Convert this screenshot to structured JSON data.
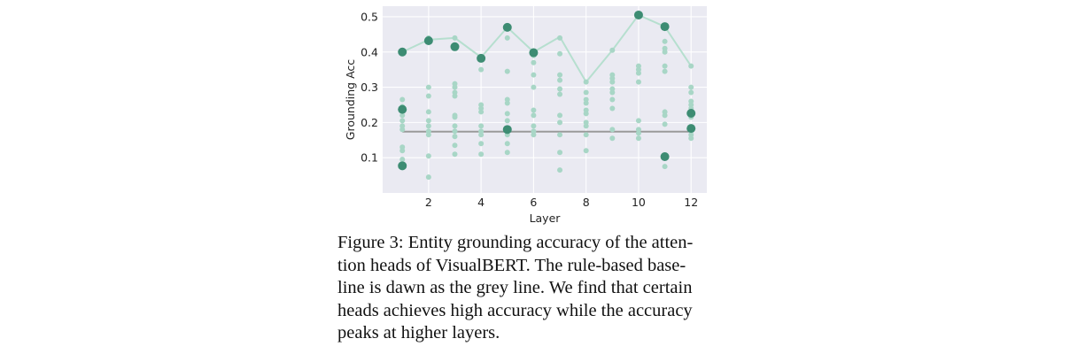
{
  "chart_data": {
    "type": "scatter",
    "title": "",
    "xlabel": "Layer",
    "ylabel": "Grounding Acc",
    "xlim": [
      0.25,
      12.6
    ],
    "ylim": [
      0.0,
      0.53
    ],
    "xticks": [
      2,
      4,
      6,
      8,
      10,
      12
    ],
    "yticks": [
      0.1,
      0.2,
      0.3,
      0.4,
      0.5
    ],
    "grid": true,
    "colors": {
      "background": "#eaeaf2",
      "grid": "#ffffff",
      "head_points": "#a8d6c6",
      "highlight_points": "#3d8c73",
      "max_line": "#b6dfcf",
      "baseline": "#9a9a9a"
    },
    "series": [
      {
        "values_desc": "heads",
        "points": [
          [
            1,
            0.265
          ],
          [
            1,
            0.245
          ],
          [
            1,
            0.22
          ],
          [
            1,
            0.205
          ],
          [
            1,
            0.19
          ],
          [
            1,
            0.18
          ],
          [
            1,
            0.13
          ],
          [
            1,
            0.12
          ],
          [
            1,
            0.095
          ],
          [
            2,
            0.44
          ],
          [
            2,
            0.3
          ],
          [
            2,
            0.275
          ],
          [
            2,
            0.23
          ],
          [
            2,
            0.205
          ],
          [
            2,
            0.19
          ],
          [
            2,
            0.175
          ],
          [
            2,
            0.165
          ],
          [
            2,
            0.105
          ],
          [
            2,
            0.045
          ],
          [
            3,
            0.44
          ],
          [
            3,
            0.31
          ],
          [
            3,
            0.3
          ],
          [
            3,
            0.285
          ],
          [
            3,
            0.275
          ],
          [
            3,
            0.22
          ],
          [
            3,
            0.215
          ],
          [
            3,
            0.19
          ],
          [
            3,
            0.175
          ],
          [
            3,
            0.16
          ],
          [
            3,
            0.135
          ],
          [
            3,
            0.11
          ],
          [
            4,
            0.35
          ],
          [
            4,
            0.25
          ],
          [
            4,
            0.24
          ],
          [
            4,
            0.23
          ],
          [
            4,
            0.19
          ],
          [
            4,
            0.175
          ],
          [
            4,
            0.165
          ],
          [
            4,
            0.14
          ],
          [
            4,
            0.11
          ],
          [
            5,
            0.44
          ],
          [
            5,
            0.345
          ],
          [
            5,
            0.265
          ],
          [
            5,
            0.255
          ],
          [
            5,
            0.225
          ],
          [
            5,
            0.205
          ],
          [
            5,
            0.165
          ],
          [
            5,
            0.14
          ],
          [
            5,
            0.115
          ],
          [
            6,
            0.39
          ],
          [
            6,
            0.37
          ],
          [
            6,
            0.335
          ],
          [
            6,
            0.3
          ],
          [
            6,
            0.235
          ],
          [
            6,
            0.22
          ],
          [
            6,
            0.19
          ],
          [
            6,
            0.175
          ],
          [
            6,
            0.165
          ],
          [
            7,
            0.44
          ],
          [
            7,
            0.395
          ],
          [
            7,
            0.335
          ],
          [
            7,
            0.32
          ],
          [
            7,
            0.295
          ],
          [
            7,
            0.28
          ],
          [
            7,
            0.22
          ],
          [
            7,
            0.2
          ],
          [
            7,
            0.165
          ],
          [
            7,
            0.115
          ],
          [
            7,
            0.065
          ],
          [
            8,
            0.315
          ],
          [
            8,
            0.285
          ],
          [
            8,
            0.265
          ],
          [
            8,
            0.255
          ],
          [
            8,
            0.235
          ],
          [
            8,
            0.225
          ],
          [
            8,
            0.2
          ],
          [
            8,
            0.19
          ],
          [
            8,
            0.165
          ],
          [
            8,
            0.12
          ],
          [
            9,
            0.405
          ],
          [
            9,
            0.335
          ],
          [
            9,
            0.325
          ],
          [
            9,
            0.315
          ],
          [
            9,
            0.295
          ],
          [
            9,
            0.285
          ],
          [
            9,
            0.265
          ],
          [
            9,
            0.24
          ],
          [
            9,
            0.18
          ],
          [
            9,
            0.155
          ],
          [
            10,
            0.36
          ],
          [
            10,
            0.35
          ],
          [
            10,
            0.34
          ],
          [
            10,
            0.315
          ],
          [
            10,
            0.205
          ],
          [
            10,
            0.18
          ],
          [
            10,
            0.17
          ],
          [
            10,
            0.155
          ],
          [
            11,
            0.43
          ],
          [
            11,
            0.41
          ],
          [
            11,
            0.4
          ],
          [
            11,
            0.36
          ],
          [
            11,
            0.345
          ],
          [
            11,
            0.23
          ],
          [
            11,
            0.22
          ],
          [
            11,
            0.195
          ],
          [
            11,
            0.075
          ],
          [
            12,
            0.36
          ],
          [
            12,
            0.3
          ],
          [
            12,
            0.285
          ],
          [
            12,
            0.26
          ],
          [
            12,
            0.25
          ],
          [
            12,
            0.24
          ],
          [
            12,
            0.215
          ],
          [
            12,
            0.175
          ],
          [
            12,
            0.165
          ],
          [
            12,
            0.155
          ]
        ]
      },
      {
        "values_desc": "highlighted heads",
        "points": [
          [
            1,
            0.4
          ],
          [
            1,
            0.237
          ],
          [
            1,
            0.077
          ],
          [
            2,
            0.432
          ],
          [
            3,
            0.415
          ],
          [
            4,
            0.382
          ],
          [
            5,
            0.47
          ],
          [
            5,
            0.18
          ],
          [
            6,
            0.398
          ],
          [
            10,
            0.505
          ],
          [
            11,
            0.472
          ],
          [
            11,
            0.103
          ],
          [
            12,
            0.226
          ],
          [
            12,
            0.183
          ]
        ]
      },
      {
        "values_desc": "max line",
        "x": [
          1,
          2,
          3,
          4,
          5,
          6,
          7,
          8,
          9,
          10,
          11,
          12
        ],
        "values": [
          0.4,
          0.435,
          0.44,
          0.385,
          0.47,
          0.4,
          0.443,
          0.315,
          0.405,
          0.505,
          0.472,
          0.36
        ]
      },
      {
        "values_desc": "rule-based baseline",
        "x": [
          1,
          12
        ],
        "values": [
          0.174,
          0.174
        ]
      }
    ]
  },
  "caption": {
    "lines": [
      "Figure 3: Entity grounding accuracy of the atten-",
      "tion heads of VisualBERT. The rule-based base-",
      "line is dawn as the grey line. We find that certain",
      "heads achieves high accuracy while the accuracy",
      "peaks at higher layers."
    ]
  }
}
